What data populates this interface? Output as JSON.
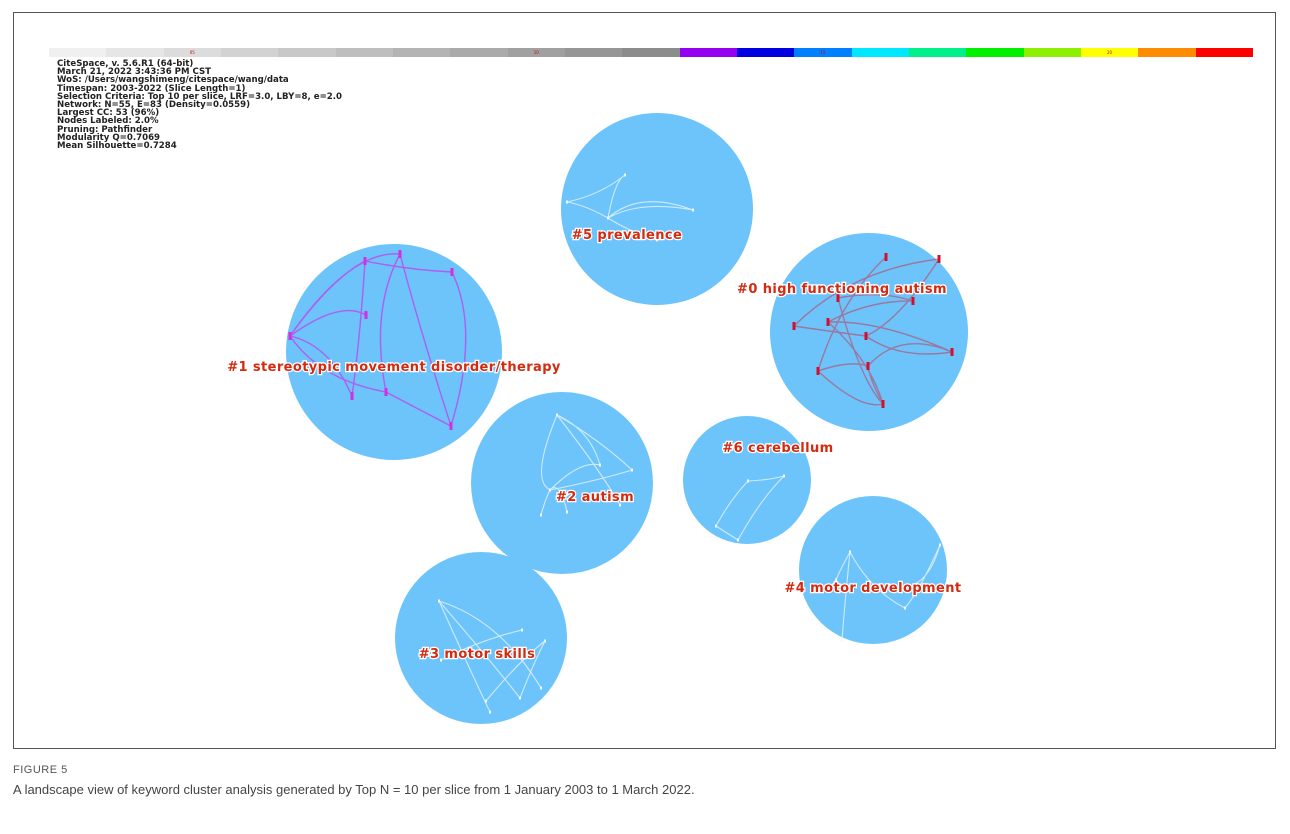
{
  "colorbar": {
    "segments": [
      {
        "color": "#f0f0f0",
        "label": ""
      },
      {
        "color": "#e6e6e6",
        "label": ""
      },
      {
        "color": "#dcdcdc",
        "label": "05"
      },
      {
        "color": "#d2d2d2",
        "label": ""
      },
      {
        "color": "#c8c8c8",
        "label": ""
      },
      {
        "color": "#bebebe",
        "label": ""
      },
      {
        "color": "#b4b4b4",
        "label": ""
      },
      {
        "color": "#aaaaaa",
        "label": ""
      },
      {
        "color": "#a0a0a0",
        "label": "10"
      },
      {
        "color": "#969696",
        "label": ""
      },
      {
        "color": "#8c8c8c",
        "label": ""
      },
      {
        "color": "#9400f0",
        "label": ""
      },
      {
        "color": "#0000e0",
        "label": ""
      },
      {
        "color": "#0080ff",
        "label": "15"
      },
      {
        "color": "#00e8ff",
        "label": ""
      },
      {
        "color": "#00f08c",
        "label": ""
      },
      {
        "color": "#00f000",
        "label": ""
      },
      {
        "color": "#8cf000",
        "label": ""
      },
      {
        "color": "#ffff00",
        "label": "20"
      },
      {
        "color": "#ff8c00",
        "label": ""
      },
      {
        "color": "#ff0000",
        "label": ""
      }
    ]
  },
  "meta_lines": [
    "CiteSpace, v. 5.6.R1 (64-bit)",
    "March 21, 2022 3:43:36 PM CST",
    "WoS: /Users/wangshimeng/citespace/wang/data",
    "Timespan: 2003-2022 (Slice Length=1)",
    "Selection Criteria: Top 10 per slice, LRF=3.0, LBY=8, e=2.0",
    "Network: N=55, E=83 (Density=0.0559)",
    "Largest CC: 53 (96%)",
    "Nodes Labeled: 2.0%",
    "Pruning: Pathfinder",
    "Modularity Q=0.7069",
    "Mean Silhouette=0.7284"
  ],
  "clusters": [
    {
      "id": "c5",
      "label": "#5 prevalence",
      "fill": "#6cc4fb",
      "link_color": "#e8f4ff"
    },
    {
      "id": "c0",
      "label": "#0 high functioning autism",
      "fill": "#6cc4fb",
      "link_color": "#c23a54"
    },
    {
      "id": "c1",
      "label": "#1 stereotypic movement disorder/therapy",
      "fill": "#6cc4fb",
      "link_color": "#c044f0"
    },
    {
      "id": "c2",
      "label": "#2 autism",
      "fill": "#6cc4fb",
      "link_color": "#e8f4ff"
    },
    {
      "id": "c6",
      "label": "#6 cerebellum",
      "fill": "#6cc4fb",
      "link_color": "#e8f4ff"
    },
    {
      "id": "c4",
      "label": "#4 motor development",
      "fill": "#6cc4fb",
      "link_color": "#e8f4ff"
    },
    {
      "id": "c3",
      "label": "#3 motor skills",
      "fill": "#6cc4fb",
      "link_color": "#e8f4ff"
    }
  ],
  "caption": {
    "figure_number": "FIGURE 5",
    "text": "A landscape view of keyword cluster analysis generated by Top N = 10 per slice from 1 January 2003 to 1 March 2022."
  }
}
